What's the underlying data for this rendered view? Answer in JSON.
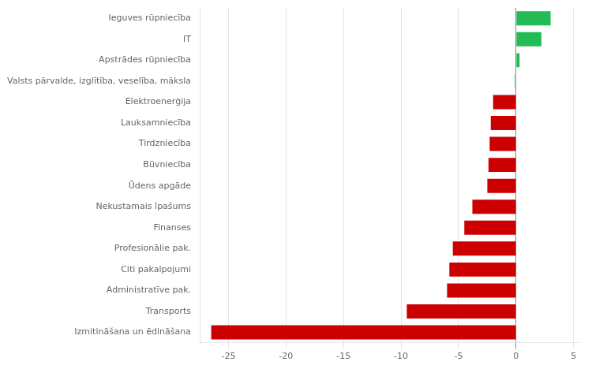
{
  "chart_data": {
    "type": "bar",
    "orientation": "horizontal",
    "categories": [
      "Izmitināšana un ēdināšana",
      "Transports",
      "Administratīve pak.",
      "Citi pakalpojumi",
      "Profesionālie pak.",
      "Finanses",
      "Nekustamais īpašums",
      "Ūdens apgāde",
      "Būvniecība",
      "Tirdzniecība",
      "Lauksamniecība",
      "Elektroenerģija",
      "Valsts pārvalde, izglītība, veselība, māksla",
      "Apstrādes rūpniecība",
      "IT",
      "Ieguves rūpniecība"
    ],
    "values": [
      -26.5,
      -9.5,
      -6.0,
      -5.8,
      -5.5,
      -4.5,
      -3.8,
      -2.5,
      -2.4,
      -2.3,
      -2.2,
      -2.0,
      -0.15,
      0.3,
      2.2,
      3.0
    ],
    "colors": [
      "#cc0000",
      "#cc0000",
      "#cc0000",
      "#cc0000",
      "#cc0000",
      "#cc0000",
      "#cc0000",
      "#cc0000",
      "#cc0000",
      "#cc0000",
      "#cc0000",
      "#cc0000",
      "#aad9c8",
      "#22bb55",
      "#22bb55",
      "#22bb55"
    ],
    "xlim": [
      -27.5,
      5.5
    ],
    "xticks": [
      -25,
      -20,
      -15,
      -10,
      -5,
      0,
      5
    ],
    "grid": true
  }
}
